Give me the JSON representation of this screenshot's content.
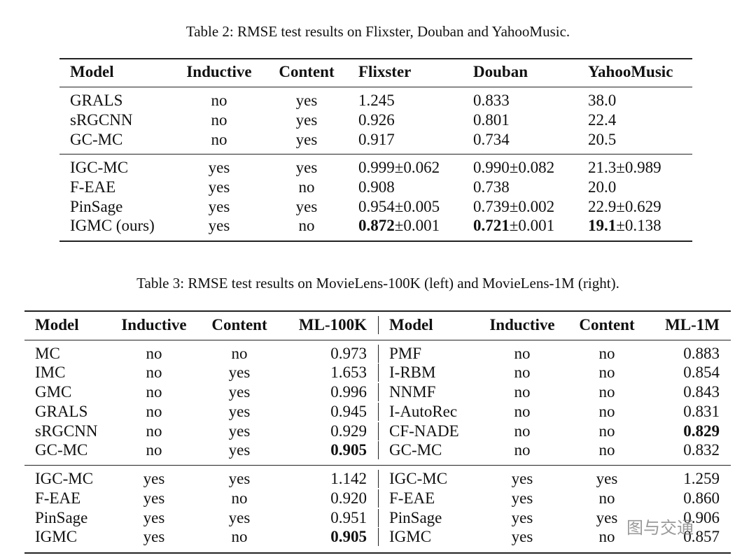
{
  "table2": {
    "caption": "Table 2: RMSE test results on Flixster, Douban and YahooMusic.",
    "columns": [
      "Model",
      "Inductive",
      "Content",
      "Flixster",
      "Douban",
      "YahooMusic"
    ],
    "groups": [
      [
        [
          "GRALS",
          "no",
          "yes",
          "1.245",
          "0.833",
          "38.0"
        ],
        [
          "sRGCNN",
          "no",
          "yes",
          "0.926",
          "0.801",
          "22.4"
        ],
        [
          "GC-MC",
          "no",
          "yes",
          "0.917",
          "0.734",
          "20.5"
        ]
      ],
      [
        [
          "IGC-MC",
          "yes",
          "yes",
          "0.999±0.062",
          "0.990±0.082",
          "21.3±0.989"
        ],
        [
          "F-EAE",
          "yes",
          "no",
          "0.908",
          "0.738",
          "20.0"
        ],
        [
          "PinSage",
          "yes",
          "yes",
          "0.954±0.005",
          "0.739±0.002",
          "22.9±0.629"
        ],
        [
          "IGMC (ours)",
          "yes",
          "no",
          {
            "bold": "0.872",
            "plain": "±0.001"
          },
          {
            "bold": "0.721",
            "plain": "±0.001"
          },
          {
            "bold": "19.1",
            "plain": "±0.138"
          }
        ]
      ]
    ]
  },
  "table3": {
    "caption": "Table 3: RMSE test results on MovieLens-100K (left) and MovieLens-1M (right).",
    "columns": [
      "Model",
      "Inductive",
      "Content",
      "ML-100K",
      "Model",
      "Inductive",
      "Content",
      "ML-1M"
    ],
    "groups": [
      [
        [
          "MC",
          "no",
          "no",
          "0.973",
          "PMF",
          "no",
          "no",
          "0.883"
        ],
        [
          "IMC",
          "no",
          "yes",
          "1.653",
          "I-RBM",
          "no",
          "no",
          "0.854"
        ],
        [
          "GMC",
          "no",
          "yes",
          "0.996",
          "NNMF",
          "no",
          "no",
          "0.843"
        ],
        [
          "GRALS",
          "no",
          "yes",
          "0.945",
          "I-AutoRec",
          "no",
          "no",
          "0.831"
        ],
        [
          "sRGCNN",
          "no",
          "yes",
          "0.929",
          "CF-NADE",
          "no",
          "no",
          {
            "bold": "0.829"
          }
        ],
        [
          "GC-MC",
          "no",
          "yes",
          {
            "bold": "0.905"
          },
          "GC-MC",
          "no",
          "no",
          "0.832"
        ]
      ],
      [
        [
          "IGC-MC",
          "yes",
          "yes",
          "1.142",
          "IGC-MC",
          "yes",
          "yes",
          "1.259"
        ],
        [
          "F-EAE",
          "yes",
          "no",
          "0.920",
          "F-EAE",
          "yes",
          "no",
          "0.860"
        ],
        [
          "PinSage",
          "yes",
          "yes",
          "0.951",
          "PinSage",
          "yes",
          "yes",
          "0.906"
        ],
        [
          "IGMC",
          "yes",
          "no",
          {
            "bold": "0.905"
          },
          "IGMC",
          "yes",
          "no",
          "0.857"
        ]
      ]
    ]
  },
  "watermark": "图与交通"
}
